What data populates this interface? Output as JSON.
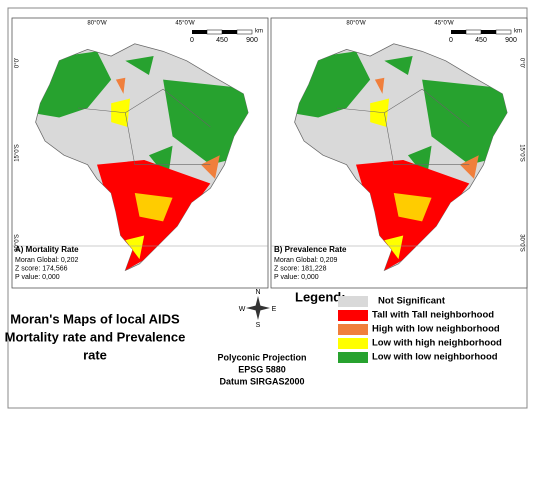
{
  "map": {
    "coordinate_labels": {
      "top": [
        "80°0'W",
        "45°0'W"
      ],
      "side": [
        "0°0'",
        "15°0'S",
        "30°0'S"
      ]
    },
    "scale": {
      "ticks": [
        "0",
        "450",
        "900"
      ],
      "unit": "km"
    },
    "panels": [
      {
        "label": "A) Mortality Rate",
        "stats": [
          "Moran Global: 0,202",
          "Z score: 174,566",
          "P value: 0,000"
        ]
      },
      {
        "label": "B) Prevalence Rate",
        "stats": [
          "Moran Global: 0,209",
          "Z score: 181,228",
          "P value: 0,000"
        ]
      }
    ]
  },
  "title": [
    "Moran's Maps of local AIDS",
    "Mortality rate and Prevalence",
    "rate"
  ],
  "compass": [
    "N",
    "E",
    "S",
    "W"
  ],
  "legend": {
    "title": "Legend:",
    "items": [
      {
        "label": "Not Significant",
        "color": "#d9d9d9"
      },
      {
        "label": "Tall with Tall neighborhood",
        "color": "#ff0000"
      },
      {
        "label": "High with low neighborhood",
        "color": "#f07f3c"
      },
      {
        "label": "Low with high neighborhood",
        "color": "#ffff00"
      },
      {
        "label": "Low with low neighborhood",
        "color": "#27a22f"
      }
    ]
  },
  "projection": [
    "Polyconic Projection",
    "EPSG 5880",
    "Datum SIRGAS2000"
  ]
}
